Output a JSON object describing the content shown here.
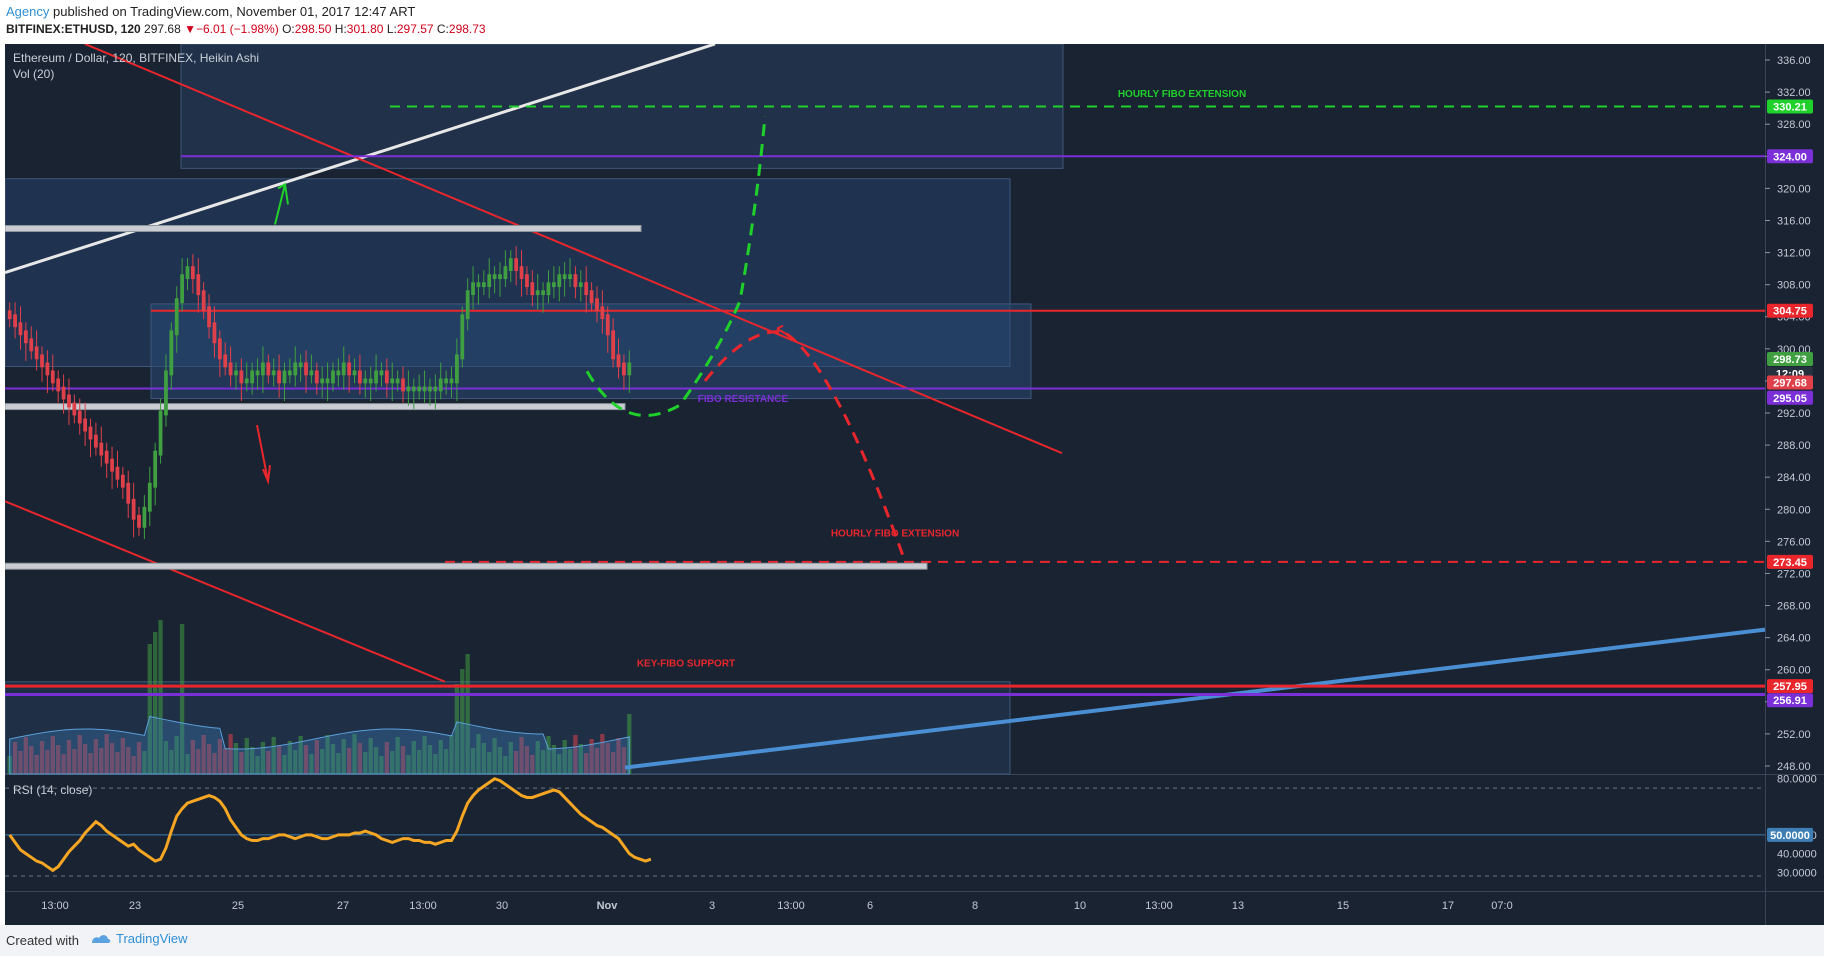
{
  "header": {
    "publisher": "Agency",
    "published_text": "published on TradingView.com, November 01, 2017 12:47 ART",
    "symbol": "BITFINEX:ETHUSD, 120",
    "last": "297.68",
    "change": "−6.01 (−1.98%)",
    "o_label": "O:",
    "o": "298.50",
    "h_label": "H:",
    "h": "301.80",
    "l_label": "L:",
    "l": "297.57",
    "c_label": "C:",
    "c": "298.73"
  },
  "legend": {
    "title": "Ethereum / Dollar, 120, BITFINEX, Heikin Ashi",
    "vol": "Vol (20)",
    "rsi": "RSI (14, close)"
  },
  "footer": {
    "created": "Created with",
    "brand": "TradingView"
  },
  "colors": {
    "bg": "#1a2332",
    "up": "#3f9f41",
    "down": "#e0404a",
    "red_line": "#e8262c",
    "purple": "#7b2fd6",
    "green_dash": "#1fd12a",
    "blue_trend": "#4a8fd4",
    "rsi": "#f5a623"
  },
  "chart_data": {
    "type": "line",
    "title": "Ethereum / Dollar, 120, BITFINEX, Heikin Ashi",
    "price_axis": {
      "ylim": [
        247,
        338
      ],
      "ticks": [
        248,
        252,
        256,
        260,
        264,
        268,
        272,
        276,
        280,
        284,
        288,
        292,
        296,
        300,
        304,
        308,
        312,
        316,
        320,
        324,
        328,
        332,
        336
      ],
      "tick_labels": [
        "248.00",
        "252.00",
        "256.00",
        "260.00",
        "264.00",
        "268.00",
        "272.00",
        "276.00",
        "280.00",
        "284.00",
        "288.00",
        "292.00",
        "296.00",
        "300.00",
        "304.00",
        "308.00",
        "312.00",
        "316.00",
        "320.00",
        "324.00",
        "328.00",
        "332.00",
        "336.00"
      ]
    },
    "time_axis": {
      "labels": [
        "13:00",
        "23",
        "25",
        "27",
        "13:00",
        "30",
        "Nov",
        "3",
        "13:00",
        "6",
        "8",
        "10",
        "13:00",
        "13",
        "15",
        "17",
        "07:0"
      ]
    },
    "price_markers": [
      {
        "label": "330.21",
        "value": 330.21,
        "color": "#1fd12a"
      },
      {
        "label": "324.00",
        "value": 324.0,
        "color": "#7b2fd6"
      },
      {
        "label": "304.75",
        "value": 304.75,
        "color": "#e8262c"
      },
      {
        "label": "298.73",
        "value": 298.73,
        "color": "#3f9f41"
      },
      {
        "label": "12:09",
        "value": 296.9,
        "color": "#263140"
      },
      {
        "label": "297.68",
        "value": 295.8,
        "color": "#e0404a"
      },
      {
        "label": "295.05",
        "value": 293.9,
        "color": "#7b2fd6"
      },
      {
        "label": "273.45",
        "value": 273.45,
        "color": "#e8262c"
      },
      {
        "label": "257.95",
        "value": 257.95,
        "color": "#e8262c"
      },
      {
        "label": "256.91",
        "value": 256.2,
        "color": "#7b2fd6"
      }
    ],
    "annotations": [
      {
        "text": "HOURLY FIBO EXTENSION",
        "color": "#1fd12a",
        "value": 331.9
      },
      {
        "text": "FIBO RESISTANCE",
        "color": "#7b2fd6",
        "value": 293.9
      },
      {
        "text": "HOURLY FIBO EXTENSION",
        "color": "#e8262c",
        "value": 277.1
      },
      {
        "text": "KEY-FIBO SUPPORT",
        "color": "#e8262c",
        "value": 260.9
      }
    ],
    "series": [
      {
        "name": "ETHUSD close",
        "values": [
          304,
          303,
          302,
          301,
          300,
          299,
          298,
          297,
          296,
          295,
          294,
          293,
          292,
          291,
          290,
          289,
          288,
          287,
          286,
          285,
          284,
          283,
          281,
          279,
          278,
          280,
          283,
          287,
          292,
          297,
          302,
          306,
          309,
          310,
          309,
          307,
          305,
          303,
          301,
          299,
          298,
          297,
          297,
          296,
          296,
          297,
          297,
          298,
          297,
          297,
          296,
          297,
          297,
          298,
          298,
          297,
          297,
          296,
          296,
          296,
          297,
          297,
          298,
          297,
          297,
          296,
          296,
          296,
          297,
          297,
          296,
          296,
          296,
          295,
          295,
          295,
          295,
          295,
          295,
          295,
          296,
          296,
          296,
          299,
          304,
          307,
          308,
          308,
          308,
          309,
          309,
          309,
          310,
          311,
          310,
          309,
          308,
          307,
          307,
          307,
          308,
          308,
          309,
          309,
          309,
          308,
          308,
          307,
          306,
          305,
          304,
          302,
          299,
          298,
          297,
          298
        ]
      }
    ],
    "volume_series": {
      "name": "Vol (20)",
      "bars": 118
    },
    "rsi_series": {
      "name": "RSI (14, close)",
      "ylim": [
        20,
        82
      ],
      "tick_labels": [
        "80.0000",
        "50.0000",
        "40.0000",
        "30.0000"
      ],
      "ticks": [
        80,
        50,
        40,
        30
      ],
      "levels": [
        75,
        50,
        28
      ],
      "values": [
        50,
        46,
        42,
        40,
        38,
        36,
        35,
        33,
        31,
        33,
        37,
        41,
        44,
        47,
        51,
        54,
        57,
        55,
        52,
        50,
        48,
        46,
        44,
        45,
        42,
        40,
        38,
        36,
        37,
        43,
        52,
        60,
        64,
        67,
        68,
        69,
        70,
        71,
        70,
        68,
        64,
        58,
        54,
        50,
        48,
        47,
        47,
        48,
        48,
        49,
        50,
        50,
        49,
        48,
        49,
        50,
        50,
        49,
        48,
        48,
        49,
        50,
        50,
        50,
        51,
        51,
        52,
        51,
        50,
        48,
        47,
        46,
        47,
        48,
        48,
        47,
        47,
        46,
        46,
        45,
        46,
        47,
        47,
        52,
        60,
        67,
        71,
        74,
        76,
        78,
        80,
        79,
        77,
        75,
        73,
        71,
        70,
        70,
        71,
        72,
        73,
        74,
        73,
        70,
        67,
        64,
        61,
        59,
        57,
        55,
        54,
        52,
        50,
        48,
        44,
        40,
        38,
        37,
        36,
        37
      ]
    }
  }
}
